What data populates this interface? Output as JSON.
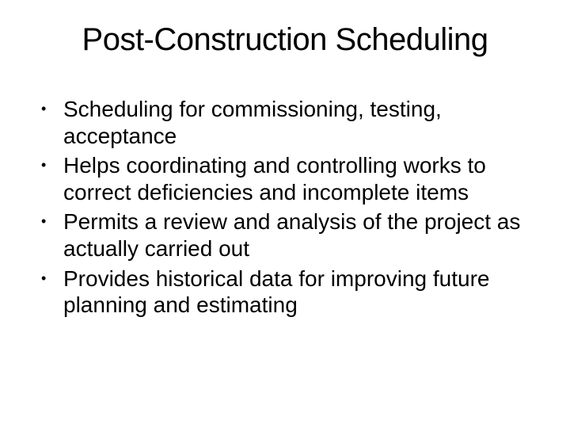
{
  "slide": {
    "title": "Post-Construction Scheduling",
    "title_fontsize": 40,
    "body_fontsize": 28,
    "text_color": "#000000",
    "background_color": "#ffffff",
    "bullets": [
      "Scheduling for commissioning, testing, acceptance",
      "Helps coordinating and controlling works to correct deficiencies and incomplete items",
      "Permits a review and analysis of the project as actually carried out",
      "Provides historical data for improving future planning and estimating"
    ]
  }
}
